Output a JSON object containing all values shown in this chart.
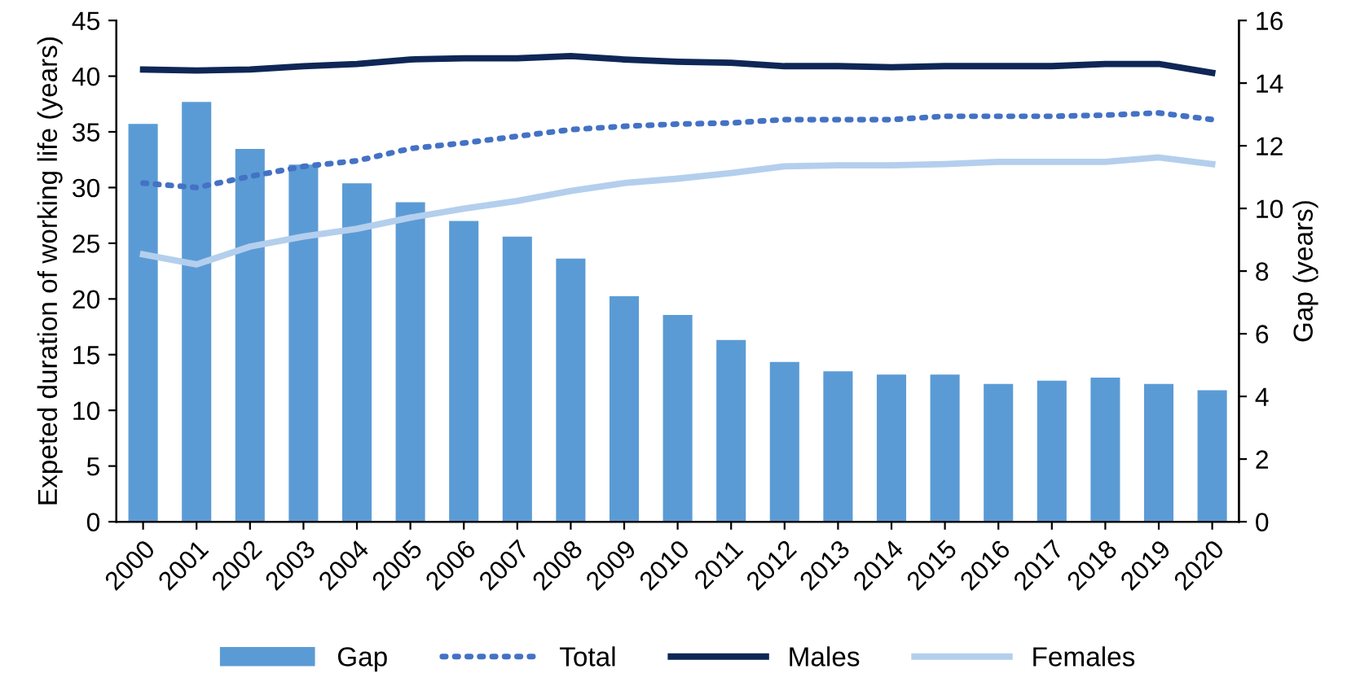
{
  "chart_data": {
    "type": "bar",
    "ylabel": "Expeted duration of working life (years)",
    "y2label": "Gap (years)",
    "categories": [
      "2000",
      "2001",
      "2002",
      "2003",
      "2004",
      "2005",
      "2006",
      "2007",
      "2008",
      "2009",
      "2010",
      "2011",
      "2012",
      "2013",
      "2014",
      "2015",
      "2016",
      "2017",
      "2018",
      "2019",
      "2020"
    ],
    "ylim": [
      0,
      45
    ],
    "yticks": [
      0,
      5,
      10,
      15,
      20,
      25,
      30,
      35,
      40,
      45
    ],
    "y2lim": [
      0,
      16
    ],
    "y2ticks": [
      0,
      2,
      4,
      6,
      8,
      10,
      12,
      14,
      16
    ],
    "legend": "bottom",
    "grid": false,
    "series": [
      {
        "name": "Gap",
        "axis": "y2",
        "color": "#5b9bd5",
        "values": [
          12.7,
          13.4,
          11.9,
          11.4,
          10.8,
          10.2,
          9.6,
          9.1,
          8.4,
          7.2,
          6.6,
          5.8,
          5.1,
          4.8,
          4.7,
          4.7,
          4.4,
          4.5,
          4.6,
          4.4,
          4.2
        ]
      },
      {
        "name": "Total",
        "type": "line",
        "line_style": "dotted",
        "color": "#4472c4",
        "values": [
          30.4,
          30.0,
          31.0,
          31.9,
          32.4,
          33.5,
          34.0,
          34.6,
          35.2,
          35.5,
          35.7,
          35.8,
          36.1,
          36.1,
          36.1,
          36.4,
          36.4,
          36.4,
          36.5,
          36.7,
          36.1
        ]
      },
      {
        "name": "Males",
        "type": "line",
        "line_style": "solid",
        "color": "#0e2756",
        "values": [
          40.6,
          40.5,
          40.6,
          40.9,
          41.1,
          41.5,
          41.6,
          41.6,
          41.8,
          41.5,
          41.3,
          41.2,
          40.9,
          40.9,
          40.8,
          40.9,
          40.9,
          40.9,
          41.1,
          41.1,
          40.3
        ]
      },
      {
        "name": "Females",
        "type": "line",
        "line_style": "solid",
        "color": "#b4cfed",
        "values": [
          24.0,
          23.1,
          24.7,
          25.6,
          26.3,
          27.3,
          28.1,
          28.8,
          29.7,
          30.4,
          30.8,
          31.3,
          31.9,
          32.0,
          32.0,
          32.1,
          32.3,
          32.3,
          32.3,
          32.7,
          32.1
        ]
      }
    ]
  }
}
